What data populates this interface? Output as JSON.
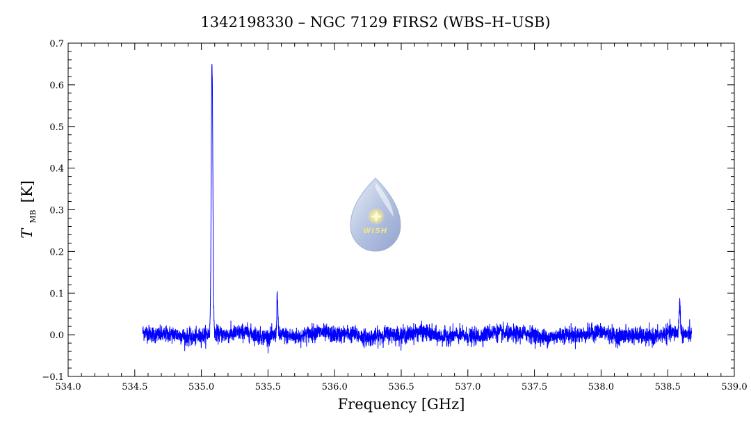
{
  "chart_data": {
    "type": "line",
    "title": "1342198330 – NGC 7129 FIRS2 (WBS–H–USB)",
    "xlabel": "Frequency [GHz]",
    "ylabel": {
      "symbol": "T",
      "subscript": "MB",
      "unit": "[K]"
    },
    "xlim": [
      534.0,
      539.0
    ],
    "ylim": [
      -0.1,
      0.7
    ],
    "x_ticks": [
      534.0,
      534.5,
      535.0,
      535.5,
      536.0,
      536.5,
      537.0,
      537.5,
      538.0,
      538.5,
      539.0
    ],
    "x_tick_labels": [
      "534.0",
      "534.5",
      "535.0",
      "535.5",
      "536.0",
      "536.5",
      "537.0",
      "537.5",
      "538.0",
      "538.5",
      "539.0"
    ],
    "y_ticks": [
      -0.1,
      0.0,
      0.1,
      0.2,
      0.3,
      0.4,
      0.5,
      0.6,
      0.7
    ],
    "y_tick_labels": [
      "−0.1",
      "0.0",
      "0.1",
      "0.2",
      "0.3",
      "0.4",
      "0.5",
      "0.6",
      "0.7"
    ],
    "x_range_data": [
      534.56,
      538.68
    ],
    "noise_rms": 0.01,
    "series": [
      {
        "color": "#0000ff",
        "lines": [
          {
            "x": 535.08,
            "peak": 0.65,
            "width": 0.006
          },
          {
            "x": 535.57,
            "peak": 0.1,
            "width": 0.004
          },
          {
            "x": 538.59,
            "peak": 0.075,
            "width": 0.005
          }
        ]
      }
    ],
    "grid": false
  },
  "logo": {
    "text": "WISH"
  }
}
